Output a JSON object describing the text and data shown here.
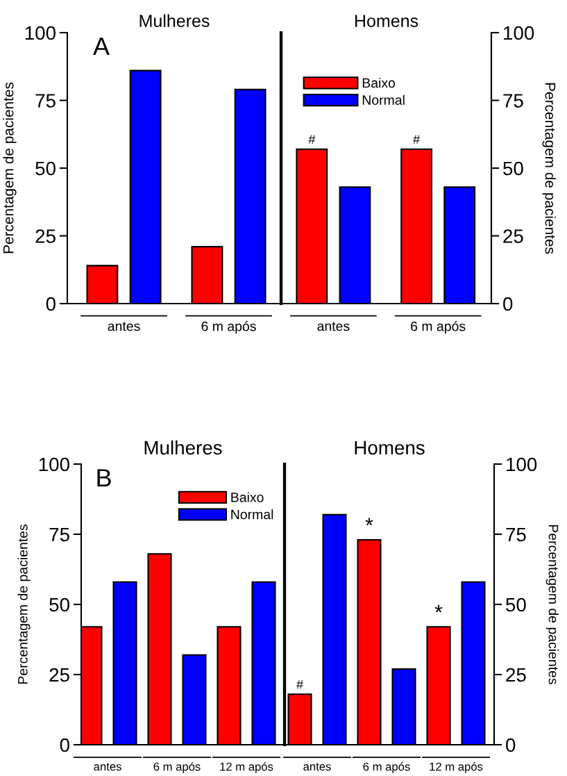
{
  "chart_data": [
    {
      "type": "bar",
      "title": "Mulheres",
      "ylabel": "Percentagem de pacientes",
      "categories": [
        "antes",
        "6 m após"
      ],
      "series": [
        {
          "color": "#ff0000",
          "values": [
            14,
            21
          ]
        },
        {
          "color": "#0000ff",
          "values": [
            86,
            79
          ]
        }
      ],
      "ylim": [
        0,
        100
      ],
      "yticks": [
        0,
        25,
        50,
        75,
        100
      ],
      "annotations": [
        "A"
      ]
    },
    {
      "type": "bar",
      "title": "Homens",
      "y2label": "Percentagem de pacientes",
      "categories": [
        "antes",
        "6 m após"
      ],
      "series": [
        {
          "name": "Baixo",
          "color": "#ff0000",
          "axis": "y2",
          "values": [
            57,
            57
          ]
        },
        {
          "name": "Normal",
          "color": "#0000ff",
          "axis": "y2",
          "values": [
            43,
            43
          ]
        }
      ],
      "ylim": [
        0,
        100
      ],
      "y2lim": [
        0,
        100
      ],
      "y2ticks": [
        0,
        25,
        50,
        75,
        100
      ],
      "legend": "top left",
      "annotations": [
        "#",
        "#"
      ]
    },
    {
      "type": "bar",
      "title": "Mulheres",
      "ylabel": "Percentagem de pacientes",
      "categories": [
        "antes",
        "6 m após",
        "12 m após"
      ],
      "series": [
        {
          "name": "Baixo",
          "color": "#ff0000",
          "values": [
            42,
            68,
            42
          ]
        },
        {
          "name": "Normal",
          "color": "#0000ff",
          "values": [
            58,
            32,
            58
          ]
        }
      ],
      "ylim": [
        0,
        100
      ],
      "yticks": [
        0,
        25,
        50,
        75,
        100
      ],
      "legend": "top right",
      "annotations": [
        "B"
      ]
    },
    {
      "type": "bar",
      "title": "Homens",
      "y2label": "Percentagem de pacientes",
      "categories": [
        "antes",
        "6 m após",
        "12 m após"
      ],
      "series": [
        {
          "color": "#ff0000",
          "axis": "y2",
          "values": [
            18,
            73,
            42
          ]
        },
        {
          "color": "#0000ff",
          "axis": "y2",
          "values": [
            82,
            27,
            58
          ]
        }
      ],
      "ylim": [
        0,
        100
      ],
      "y2lim": [
        0,
        100
      ],
      "y2ticks": [
        0,
        25,
        50,
        75,
        100
      ],
      "annotations": [
        "#",
        "*",
        "*"
      ]
    }
  ]
}
